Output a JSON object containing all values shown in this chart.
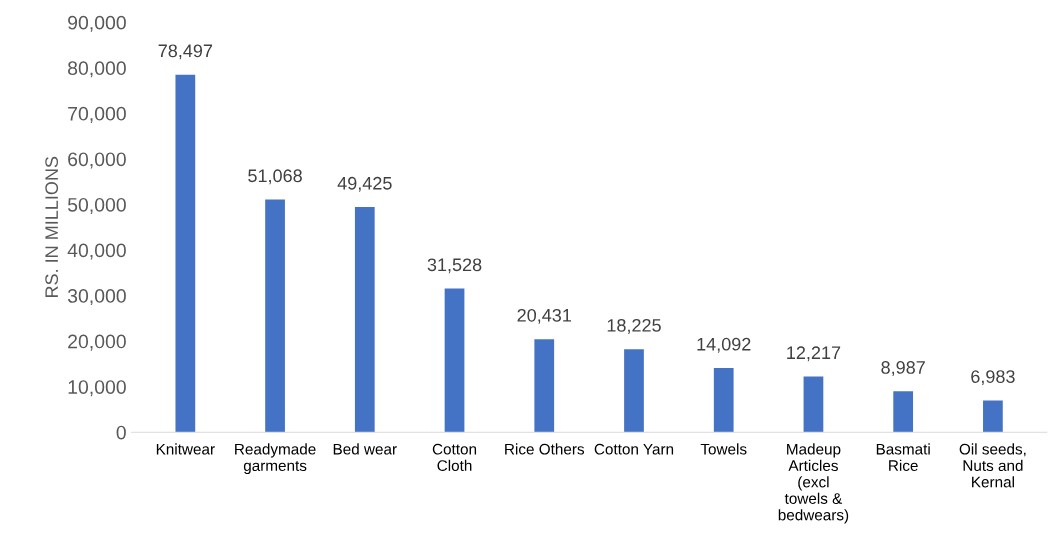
{
  "chart_data": {
    "type": "bar",
    "ylabel": "RS. IN MILLIONS",
    "categories": [
      "Knitwear",
      "Readymade garments",
      "Bed wear",
      "Cotton Cloth",
      "Rice Others",
      "Cotton Yarn",
      "Towels",
      "Madeup Articles (excl towels & bedwears)",
      "Basmati Rice",
      "Oil seeds, Nuts and Kernal"
    ],
    "values": [
      78497,
      51068,
      49425,
      31528,
      20431,
      18225,
      14092,
      12217,
      8987,
      6983
    ],
    "color": "#4472c4",
    "ylim": [
      0,
      90000
    ],
    "yticks": [
      {
        "value": 0,
        "label": "0"
      },
      {
        "value": 10000,
        "label": "10,000"
      },
      {
        "value": 20000,
        "label": "20,000"
      },
      {
        "value": 30000,
        "label": "30,000"
      },
      {
        "value": 40000,
        "label": "40,000"
      },
      {
        "value": 50000,
        "label": "50,000"
      },
      {
        "value": 60000,
        "label": "60,000"
      },
      {
        "value": 70000,
        "label": "70,000"
      },
      {
        "value": 80000,
        "label": "80,000"
      },
      {
        "value": 90000,
        "label": "90,000"
      }
    ],
    "value_labels": [
      "78,497",
      "51,068",
      "49,425",
      "31,528",
      "20,431",
      "18,225",
      "14,092",
      "12,217",
      "8,987",
      "6,983"
    ],
    "grid": false,
    "legend": false
  }
}
